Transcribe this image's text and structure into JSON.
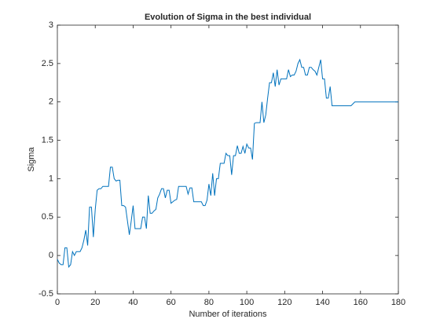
{
  "chart_data": {
    "type": "line",
    "title": "Evolution of Sigma in the best individual",
    "xlabel": "Number of iterations",
    "ylabel": "Sigma",
    "x": [
      0,
      1,
      2,
      3,
      4,
      5,
      6,
      7,
      8,
      9,
      10,
      11,
      12,
      13,
      14,
      15,
      16,
      17,
      18,
      19,
      20,
      21,
      22,
      23,
      24,
      25,
      26,
      27,
      28,
      29,
      30,
      31,
      32,
      33,
      34,
      35,
      36,
      37,
      38,
      39,
      40,
      41,
      42,
      43,
      44,
      45,
      46,
      47,
      48,
      49,
      50,
      51,
      52,
      53,
      54,
      55,
      56,
      57,
      58,
      59,
      60,
      61,
      62,
      63,
      64,
      65,
      66,
      67,
      68,
      69,
      70,
      71,
      72,
      73,
      74,
      75,
      76,
      77,
      78,
      79,
      80,
      81,
      82,
      83,
      84,
      85,
      86,
      87,
      88,
      89,
      90,
      91,
      92,
      93,
      94,
      95,
      96,
      97,
      98,
      99,
      100,
      101,
      102,
      103,
      104,
      105,
      106,
      107,
      108,
      109,
      110,
      111,
      112,
      113,
      114,
      115,
      116,
      117,
      118,
      119,
      120,
      121,
      122,
      123,
      124,
      125,
      126,
      127,
      128,
      129,
      130,
      131,
      132,
      133,
      134,
      135,
      136,
      137,
      138,
      139,
      140,
      141,
      142,
      143,
      144,
      145,
      155,
      157,
      180
    ],
    "series": [
      {
        "name": "Sigma",
        "color": "#0072bd",
        "values": [
          -0.05,
          -0.1,
          -0.12,
          -0.12,
          0.1,
          0.1,
          -0.15,
          -0.12,
          0.05,
          0.0,
          0.05,
          0.05,
          0.05,
          0.1,
          0.2,
          0.33,
          0.13,
          0.63,
          0.63,
          0.24,
          0.6,
          0.85,
          0.87,
          0.87,
          0.9,
          0.9,
          0.9,
          0.9,
          1.15,
          1.15,
          1.0,
          0.97,
          0.98,
          0.98,
          0.65,
          0.65,
          0.63,
          0.45,
          0.27,
          0.45,
          0.65,
          0.35,
          0.35,
          0.35,
          0.35,
          0.5,
          0.5,
          0.35,
          0.78,
          0.55,
          0.55,
          0.58,
          0.6,
          0.75,
          0.8,
          0.87,
          0.87,
          0.75,
          0.85,
          0.85,
          0.68,
          0.7,
          0.72,
          0.73,
          0.9,
          0.9,
          0.9,
          0.9,
          0.9,
          0.8,
          0.88,
          0.88,
          0.7,
          0.7,
          0.7,
          0.7,
          0.7,
          0.65,
          0.65,
          0.72,
          0.93,
          0.78,
          1.07,
          0.78,
          1.0,
          1.0,
          1.2,
          1.2,
          1.2,
          1.33,
          1.3,
          1.3,
          1.05,
          1.3,
          1.3,
          1.43,
          1.33,
          1.33,
          1.42,
          1.33,
          1.45,
          1.4,
          1.4,
          1.25,
          1.72,
          1.73,
          1.73,
          1.73,
          2.0,
          1.73,
          1.83,
          2.05,
          2.25,
          2.25,
          2.38,
          2.2,
          2.42,
          2.22,
          2.3,
          2.3,
          2.3,
          2.3,
          2.42,
          2.33,
          2.35,
          2.35,
          2.4,
          2.5,
          2.55,
          2.45,
          2.45,
          2.35,
          2.35,
          2.45,
          2.45,
          2.42,
          2.4,
          2.35,
          2.45,
          2.55,
          2.3,
          2.3,
          2.05,
          2.05,
          2.2,
          1.95,
          1.95,
          2.0,
          2.0
        ]
      }
    ],
    "xlim": [
      0,
      180
    ],
    "xticks": [
      0,
      20,
      40,
      60,
      80,
      100,
      120,
      140,
      160,
      180
    ],
    "ylim": [
      -0.5,
      3
    ],
    "yticks": [
      -0.5,
      0,
      0.5,
      1,
      1.5,
      2,
      2.5,
      3
    ],
    "grid": false
  }
}
